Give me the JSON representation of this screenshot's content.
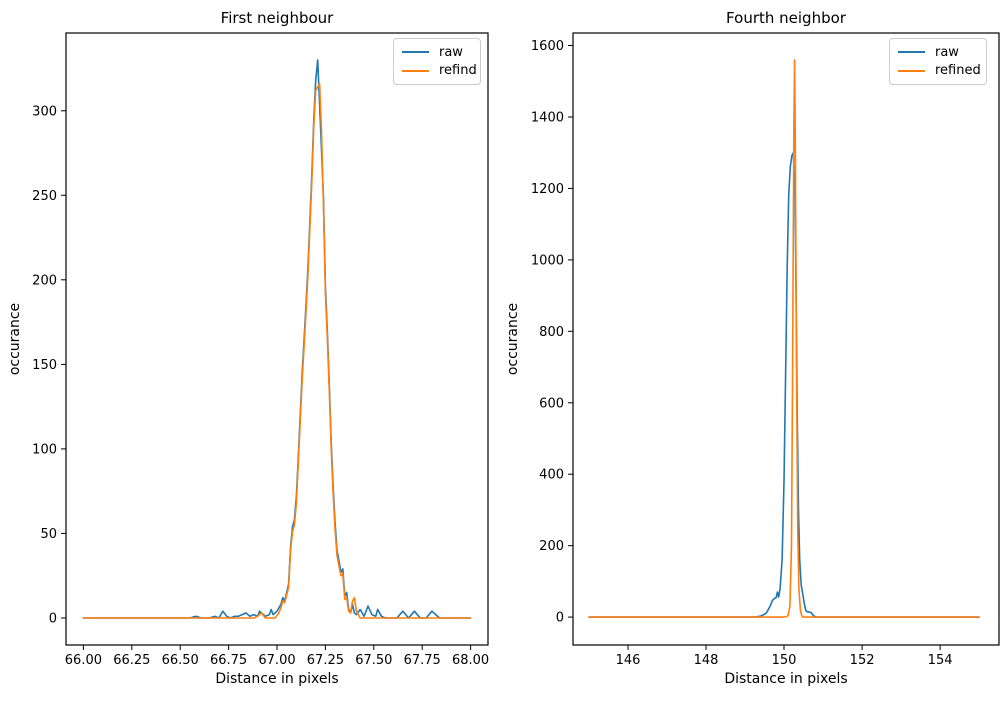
{
  "colors": {
    "raw": "#1f77b4",
    "refined": "#ff7f0e",
    "spine": "#000000",
    "legend_border": "#cccccc"
  },
  "chart_data": [
    {
      "type": "line",
      "title": "First neighbour",
      "xlabel": "Distance in pixels",
      "ylabel": "occurance",
      "grid": false,
      "legend_position": "upper right",
      "legend": [
        "raw",
        "refind"
      ],
      "xlim": [
        65.91,
        68.09
      ],
      "ylim": [
        -16,
        346
      ],
      "xticks": [
        66.0,
        66.25,
        66.5,
        66.75,
        67.0,
        67.25,
        67.5,
        67.75,
        68.0
      ],
      "xtick_labels": [
        "66.00",
        "66.25",
        "66.50",
        "66.75",
        "67.00",
        "67.25",
        "67.50",
        "67.75",
        "68.00"
      ],
      "yticks": [
        0,
        50,
        100,
        150,
        200,
        250,
        300
      ],
      "ytick_labels": [
        "0",
        "50",
        "100",
        "150",
        "200",
        "250",
        "300"
      ],
      "series": [
        {
          "name": "raw",
          "color_key": "raw",
          "points": [
            [
              66.0,
              0
            ],
            [
              66.55,
              0
            ],
            [
              66.58,
              1
            ],
            [
              66.61,
              0
            ],
            [
              66.65,
              0
            ],
            [
              66.68,
              1
            ],
            [
              66.7,
              0
            ],
            [
              66.72,
              4
            ],
            [
              66.74,
              1
            ],
            [
              66.76,
              0
            ],
            [
              66.78,
              1
            ],
            [
              66.8,
              1
            ],
            [
              66.82,
              2
            ],
            [
              66.84,
              3
            ],
            [
              66.86,
              1
            ],
            [
              66.88,
              2
            ],
            [
              66.9,
              1
            ],
            [
              66.91,
              4
            ],
            [
              66.93,
              2
            ],
            [
              66.94,
              1
            ],
            [
              66.96,
              2
            ],
            [
              66.97,
              5
            ],
            [
              66.98,
              2
            ],
            [
              67.0,
              4
            ],
            [
              67.02,
              8
            ],
            [
              67.03,
              12
            ],
            [
              67.04,
              10
            ],
            [
              67.06,
              20
            ],
            [
              67.07,
              42
            ],
            [
              67.08,
              54
            ],
            [
              67.09,
              58
            ],
            [
              67.1,
              72
            ],
            [
              67.11,
              95
            ],
            [
              67.12,
              120
            ],
            [
              67.13,
              145
            ],
            [
              67.14,
              165
            ],
            [
              67.15,
              185
            ],
            [
              67.16,
              208
            ],
            [
              67.17,
              235
            ],
            [
              67.18,
              262
            ],
            [
              67.19,
              295
            ],
            [
              67.2,
              318
            ],
            [
              67.21,
              330
            ],
            [
              67.22,
              304
            ],
            [
              67.23,
              277
            ],
            [
              67.24,
              248
            ],
            [
              67.25,
              196
            ],
            [
              67.26,
              170
            ],
            [
              67.27,
              138
            ],
            [
              67.28,
              104
            ],
            [
              67.29,
              78
            ],
            [
              67.3,
              56
            ],
            [
              67.31,
              40
            ],
            [
              67.32,
              34
            ],
            [
              67.33,
              27
            ],
            [
              67.34,
              29
            ],
            [
              67.35,
              13
            ],
            [
              67.36,
              15
            ],
            [
              67.37,
              5
            ],
            [
              67.38,
              3
            ],
            [
              67.39,
              8
            ],
            [
              67.4,
              3
            ],
            [
              67.41,
              2
            ],
            [
              67.43,
              5
            ],
            [
              67.45,
              1
            ],
            [
              67.47,
              7
            ],
            [
              67.49,
              2
            ],
            [
              67.51,
              1
            ],
            [
              67.52,
              5
            ],
            [
              67.54,
              1
            ],
            [
              67.56,
              0
            ],
            [
              67.62,
              0
            ],
            [
              67.65,
              4
            ],
            [
              67.68,
              0
            ],
            [
              67.71,
              4
            ],
            [
              67.74,
              0
            ],
            [
              67.77,
              0
            ],
            [
              67.8,
              4
            ],
            [
              67.82,
              2
            ],
            [
              67.84,
              0
            ],
            [
              68.0,
              0
            ]
          ]
        },
        {
          "name": "refind",
          "color_key": "refined",
          "points": [
            [
              66.0,
              0
            ],
            [
              66.88,
              0
            ],
            [
              66.9,
              1
            ],
            [
              66.92,
              3
            ],
            [
              66.94,
              0
            ],
            [
              66.99,
              0
            ],
            [
              67.01,
              3
            ],
            [
              67.02,
              6
            ],
            [
              67.03,
              10
            ],
            [
              67.04,
              9
            ],
            [
              67.06,
              18
            ],
            [
              67.07,
              40
            ],
            [
              67.08,
              51
            ],
            [
              67.09,
              55
            ],
            [
              67.1,
              68
            ],
            [
              67.11,
              92
            ],
            [
              67.12,
              116
            ],
            [
              67.13,
              141
            ],
            [
              67.14,
              161
            ],
            [
              67.15,
              181
            ],
            [
              67.16,
              204
            ],
            [
              67.17,
              231
            ],
            [
              67.18,
              258
            ],
            [
              67.19,
              291
            ],
            [
              67.2,
              312
            ],
            [
              67.22,
              316
            ],
            [
              67.23,
              288
            ],
            [
              67.24,
              243
            ],
            [
              67.25,
              192
            ],
            [
              67.26,
              166
            ],
            [
              67.27,
              134
            ],
            [
              67.28,
              100
            ],
            [
              67.29,
              74
            ],
            [
              67.3,
              52
            ],
            [
              67.31,
              37
            ],
            [
              67.32,
              31
            ],
            [
              67.33,
              25
            ],
            [
              67.34,
              26
            ],
            [
              67.35,
              11
            ],
            [
              67.36,
              12
            ],
            [
              67.37,
              4
            ],
            [
              67.38,
              3
            ],
            [
              67.39,
              10
            ],
            [
              67.4,
              12
            ],
            [
              67.41,
              4
            ],
            [
              67.43,
              0
            ],
            [
              68.0,
              0
            ]
          ]
        }
      ]
    },
    {
      "type": "line",
      "title": "Fourth neighbor",
      "xlabel": "Distance in pixels",
      "ylabel": "occurance",
      "grid": false,
      "legend_position": "upper right",
      "legend": [
        "raw",
        "refined"
      ],
      "xlim": [
        144.59,
        155.51
      ],
      "ylim": [
        -78,
        1635
      ],
      "xticks": [
        146,
        148,
        150,
        152,
        154
      ],
      "xtick_labels": [
        "146",
        "148",
        "150",
        "152",
        "154"
      ],
      "yticks": [
        0,
        200,
        400,
        600,
        800,
        1000,
        1200,
        1400,
        1600
      ],
      "ytick_labels": [
        "0",
        "200",
        "400",
        "600",
        "800",
        "1000",
        "1200",
        "1400",
        "1600"
      ],
      "series": [
        {
          "name": "raw",
          "color_key": "raw",
          "points": [
            [
              145.0,
              0
            ],
            [
              149.2,
              0
            ],
            [
              149.3,
              1
            ],
            [
              149.4,
              3
            ],
            [
              149.5,
              8
            ],
            [
              149.55,
              12
            ],
            [
              149.6,
              22
            ],
            [
              149.65,
              32
            ],
            [
              149.7,
              46
            ],
            [
              149.75,
              52
            ],
            [
              149.8,
              55
            ],
            [
              149.83,
              70
            ],
            [
              149.86,
              56
            ],
            [
              149.9,
              80
            ],
            [
              149.95,
              160
            ],
            [
              150.0,
              380
            ],
            [
              150.04,
              680
            ],
            [
              150.08,
              980
            ],
            [
              150.12,
              1180
            ],
            [
              150.16,
              1260
            ],
            [
              150.2,
              1292
            ],
            [
              150.24,
              1300
            ],
            [
              150.28,
              1180
            ],
            [
              150.31,
              900
            ],
            [
              150.34,
              550
            ],
            [
              150.37,
              300
            ],
            [
              150.4,
              160
            ],
            [
              150.44,
              90
            ],
            [
              150.48,
              64
            ],
            [
              150.52,
              38
            ],
            [
              150.56,
              18
            ],
            [
              150.6,
              15
            ],
            [
              150.65,
              14
            ],
            [
              150.7,
              12
            ],
            [
              150.74,
              6
            ],
            [
              150.78,
              2
            ],
            [
              150.82,
              0
            ],
            [
              155.0,
              0
            ]
          ]
        },
        {
          "name": "refined",
          "color_key": "refined",
          "points": [
            [
              145.0,
              0
            ],
            [
              149.95,
              0
            ],
            [
              150.05,
              1
            ],
            [
              150.1,
              4
            ],
            [
              150.15,
              30
            ],
            [
              150.19,
              200
            ],
            [
              150.22,
              700
            ],
            [
              150.25,
              1350
            ],
            [
              150.27,
              1560
            ],
            [
              150.29,
              1300
            ],
            [
              150.32,
              700
            ],
            [
              150.35,
              250
            ],
            [
              150.38,
              80
            ],
            [
              150.42,
              20
            ],
            [
              150.45,
              5
            ],
            [
              150.48,
              0
            ],
            [
              155.0,
              0
            ]
          ]
        }
      ]
    }
  ]
}
